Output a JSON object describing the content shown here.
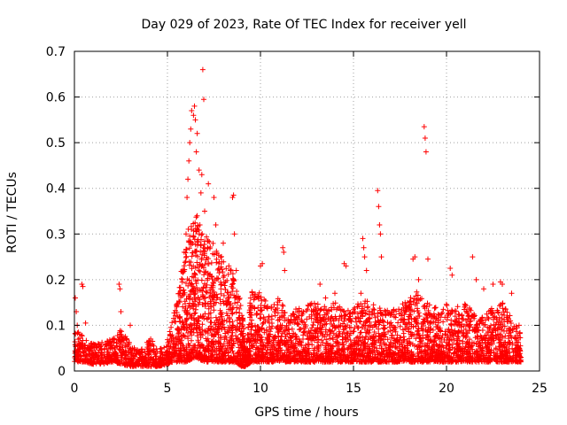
{
  "chart_data": {
    "type": "scatter",
    "title": "Day 029 of 2023, Rate Of TEC Index for receiver yell",
    "xlabel": "GPS time / hours",
    "ylabel": "ROTI / TECUs",
    "xlim": [
      0,
      25
    ],
    "ylim": [
      0,
      0.7
    ],
    "xticks": [
      "0",
      "5",
      "10",
      "15",
      "20",
      "25"
    ],
    "yticks": [
      "0",
      "0.1",
      "0.2",
      "0.3",
      "0.4",
      "0.5",
      "0.6",
      "0.7"
    ],
    "grid": true,
    "marker": "+",
    "color": "#ff0000",
    "series": [
      {
        "name": "ROTI",
        "points": [
          [
            0.05,
            0.16
          ],
          [
            0.1,
            0.13
          ],
          [
            0.15,
            0.1
          ],
          [
            0.4,
            0.19
          ],
          [
            0.45,
            0.185
          ],
          [
            0.6,
            0.105
          ],
          [
            2.4,
            0.19
          ],
          [
            2.45,
            0.18
          ],
          [
            2.5,
            0.13
          ],
          [
            3.0,
            0.1
          ],
          [
            4.1,
            0.07
          ],
          [
            4.2,
            0.065
          ],
          [
            5.5,
            0.14
          ],
          [
            5.8,
            0.2
          ],
          [
            5.9,
            0.26
          ],
          [
            6.0,
            0.3
          ],
          [
            6.05,
            0.38
          ],
          [
            6.1,
            0.42
          ],
          [
            6.15,
            0.46
          ],
          [
            6.2,
            0.5
          ],
          [
            6.25,
            0.53
          ],
          [
            6.3,
            0.57
          ],
          [
            6.4,
            0.56
          ],
          [
            6.45,
            0.58
          ],
          [
            6.5,
            0.55
          ],
          [
            6.55,
            0.48
          ],
          [
            6.6,
            0.52
          ],
          [
            6.7,
            0.44
          ],
          [
            6.8,
            0.39
          ],
          [
            6.85,
            0.43
          ],
          [
            6.9,
            0.66
          ],
          [
            6.95,
            0.595
          ],
          [
            7.0,
            0.35
          ],
          [
            7.2,
            0.41
          ],
          [
            7.5,
            0.38
          ],
          [
            7.6,
            0.32
          ],
          [
            8.0,
            0.28
          ],
          [
            8.3,
            0.23
          ],
          [
            8.5,
            0.38
          ],
          [
            8.55,
            0.385
          ],
          [
            8.6,
            0.3
          ],
          [
            8.7,
            0.22
          ],
          [
            10.0,
            0.23
          ],
          [
            10.1,
            0.235
          ],
          [
            11.2,
            0.27
          ],
          [
            11.25,
            0.26
          ],
          [
            11.3,
            0.22
          ],
          [
            13.2,
            0.19
          ],
          [
            13.5,
            0.16
          ],
          [
            14.0,
            0.17
          ],
          [
            14.5,
            0.235
          ],
          [
            14.6,
            0.23
          ],
          [
            15.4,
            0.17
          ],
          [
            15.5,
            0.29
          ],
          [
            15.55,
            0.27
          ],
          [
            15.6,
            0.25
          ],
          [
            15.7,
            0.22
          ],
          [
            16.3,
            0.395
          ],
          [
            16.35,
            0.36
          ],
          [
            16.4,
            0.32
          ],
          [
            16.45,
            0.3
          ],
          [
            16.5,
            0.25
          ],
          [
            18.2,
            0.245
          ],
          [
            18.3,
            0.25
          ],
          [
            18.5,
            0.2
          ],
          [
            18.8,
            0.535
          ],
          [
            18.85,
            0.51
          ],
          [
            18.9,
            0.48
          ],
          [
            19.0,
            0.245
          ],
          [
            20.2,
            0.225
          ],
          [
            20.3,
            0.21
          ],
          [
            21.4,
            0.25
          ],
          [
            21.6,
            0.2
          ],
          [
            22.0,
            0.18
          ],
          [
            22.5,
            0.19
          ],
          [
            22.9,
            0.195
          ],
          [
            23.0,
            0.19
          ],
          [
            23.5,
            0.17
          ],
          [
            23.9,
            0.1
          ],
          [
            24.0,
            0.03
          ]
        ],
        "dense_band": [
          [
            0.0,
            0.02,
            0.09
          ],
          [
            0.5,
            0.02,
            0.08
          ],
          [
            1.0,
            0.015,
            0.06
          ],
          [
            1.5,
            0.015,
            0.065
          ],
          [
            2.0,
            0.02,
            0.07
          ],
          [
            2.5,
            0.015,
            0.09
          ],
          [
            3.0,
            0.01,
            0.06
          ],
          [
            3.5,
            0.01,
            0.045
          ],
          [
            4.0,
            0.01,
            0.07
          ],
          [
            4.5,
            0.01,
            0.045
          ],
          [
            5.0,
            0.015,
            0.07
          ],
          [
            5.5,
            0.02,
            0.15
          ],
          [
            6.0,
            0.02,
            0.3
          ],
          [
            6.5,
            0.03,
            0.35
          ],
          [
            7.0,
            0.02,
            0.3
          ],
          [
            7.5,
            0.02,
            0.28
          ],
          [
            8.0,
            0.02,
            0.25
          ],
          [
            8.5,
            0.02,
            0.22
          ],
          [
            9.0,
            0.01,
            0.15
          ],
          [
            9.2,
            0.01,
            0.04
          ],
          [
            9.5,
            0.02,
            0.18
          ],
          [
            10.0,
            0.02,
            0.17
          ],
          [
            10.5,
            0.02,
            0.15
          ],
          [
            11.0,
            0.02,
            0.16
          ],
          [
            11.5,
            0.02,
            0.12
          ],
          [
            12.0,
            0.02,
            0.14
          ],
          [
            12.5,
            0.02,
            0.15
          ],
          [
            13.0,
            0.02,
            0.15
          ],
          [
            13.5,
            0.02,
            0.14
          ],
          [
            14.0,
            0.02,
            0.15
          ],
          [
            14.5,
            0.02,
            0.14
          ],
          [
            15.0,
            0.02,
            0.14
          ],
          [
            15.5,
            0.02,
            0.16
          ],
          [
            16.0,
            0.02,
            0.15
          ],
          [
            16.5,
            0.02,
            0.14
          ],
          [
            17.0,
            0.02,
            0.13
          ],
          [
            17.5,
            0.02,
            0.15
          ],
          [
            18.0,
            0.02,
            0.16
          ],
          [
            18.5,
            0.02,
            0.18
          ],
          [
            19.0,
            0.02,
            0.15
          ],
          [
            19.5,
            0.02,
            0.14
          ],
          [
            20.0,
            0.02,
            0.15
          ],
          [
            20.5,
            0.02,
            0.14
          ],
          [
            21.0,
            0.02,
            0.15
          ],
          [
            21.5,
            0.02,
            0.13
          ],
          [
            22.0,
            0.02,
            0.12
          ],
          [
            22.5,
            0.02,
            0.14
          ],
          [
            23.0,
            0.02,
            0.15
          ],
          [
            23.5,
            0.02,
            0.12
          ],
          [
            24.0,
            0.02,
            0.08
          ]
        ]
      }
    ]
  }
}
